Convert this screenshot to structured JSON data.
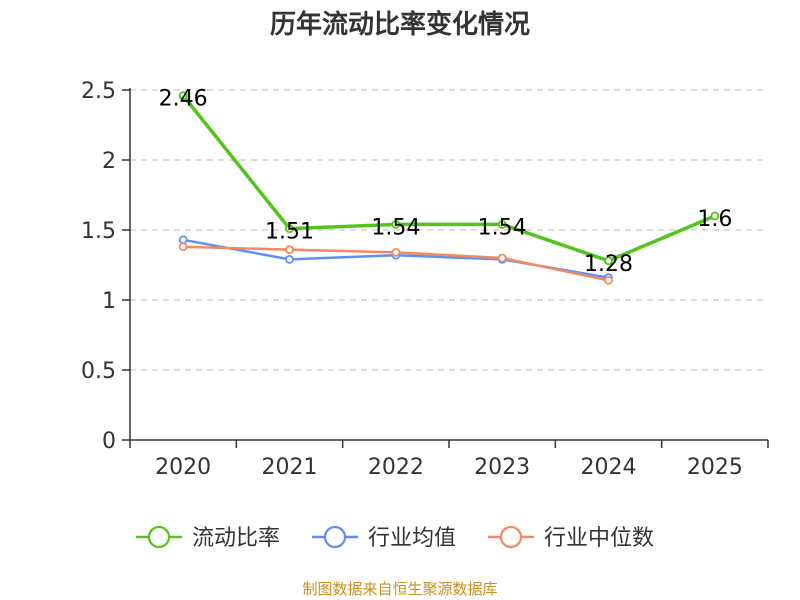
{
  "chart_data": {
    "type": "line",
    "title": "历年流动比率变化情况",
    "categories": [
      "2020",
      "2021",
      "2022",
      "2023",
      "2024",
      "2025"
    ],
    "ylim": [
      0,
      2.5
    ],
    "yticks": [
      0,
      0.5,
      1,
      1.5,
      2,
      2.5
    ],
    "ytick_labels": [
      "0",
      "0.5",
      "1",
      "1.5",
      "2",
      "2.5"
    ],
    "grid": true,
    "legend_position": "bottom",
    "series": [
      {
        "name": "流动比率",
        "color": "#52c41a",
        "values": [
          2.46,
          1.51,
          1.54,
          1.54,
          1.28,
          1.6
        ],
        "labels": [
          "2.46",
          "1.51",
          "1.54",
          "1.54",
          "1.28",
          "1.6"
        ]
      },
      {
        "name": "行业均值",
        "color": "#5b8ff9",
        "values": [
          1.43,
          1.29,
          1.32,
          1.29,
          1.16,
          null
        ]
      },
      {
        "name": "行业中位数",
        "color": "#f4895f",
        "values": [
          1.38,
          1.36,
          1.34,
          1.3,
          1.14,
          null
        ]
      }
    ]
  },
  "source_text": "制图数据来自恒生聚源数据库"
}
